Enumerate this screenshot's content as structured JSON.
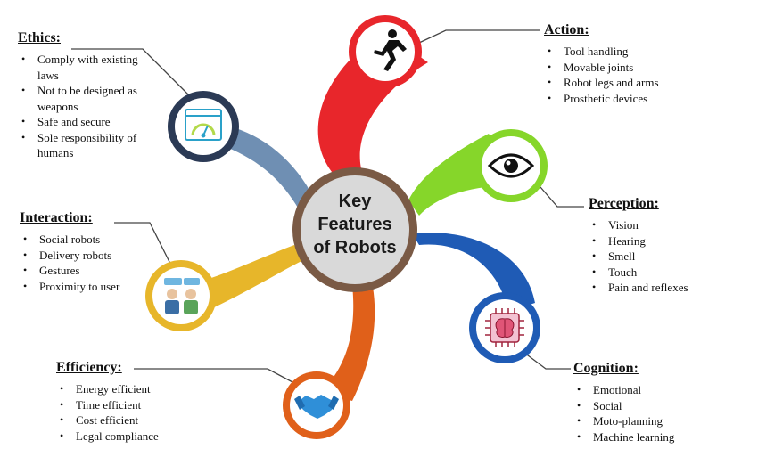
{
  "center": {
    "lines": [
      "Key",
      "Features",
      "of Robots"
    ]
  },
  "colors": {
    "action": "#e8262b",
    "perception": "#86d62a",
    "cognition": "#1f5bb5",
    "efficiency": "#e0601a",
    "interaction": "#e7b62a",
    "ethics": "#6f8fb3",
    "hub_ring": "#7a5a45",
    "hub_fill": "#d9d9d9",
    "node_ring": "#2b3a55"
  },
  "sections": {
    "action": {
      "title": "Action:",
      "icon": "running-person-icon",
      "items": [
        "Tool handling",
        "Movable joints",
        "Robot legs and arms",
        "Prosthetic devices"
      ]
    },
    "perception": {
      "title": "Perception:",
      "icon": "eye-icon",
      "items": [
        "Vision",
        "Hearing",
        "Smell",
        "Touch",
        "Pain and reflexes"
      ]
    },
    "cognition": {
      "title": "Cognition:",
      "icon": "brain-chip-icon",
      "items": [
        "Emotional",
        "Social",
        "Moto-planning",
        "Machine learning"
      ]
    },
    "efficiency": {
      "title": "Efficiency:",
      "icon": "handshake-icon",
      "items": [
        "Energy efficient",
        "Time efficient",
        "Cost efficient",
        "Legal compliance"
      ]
    },
    "interaction": {
      "title": "Interaction:",
      "icon": "people-interaction-icon",
      "items": [
        "Social robots",
        "Delivery robots",
        "Gestures",
        "Proximity to user"
      ]
    },
    "ethics": {
      "title": "Ethics:",
      "icon": "dashboard-gauge-icon",
      "items": [
        "Comply with existing laws",
        "Not to be designed as weapons",
        "Safe and secure",
        "Sole responsibility of humans"
      ]
    }
  }
}
